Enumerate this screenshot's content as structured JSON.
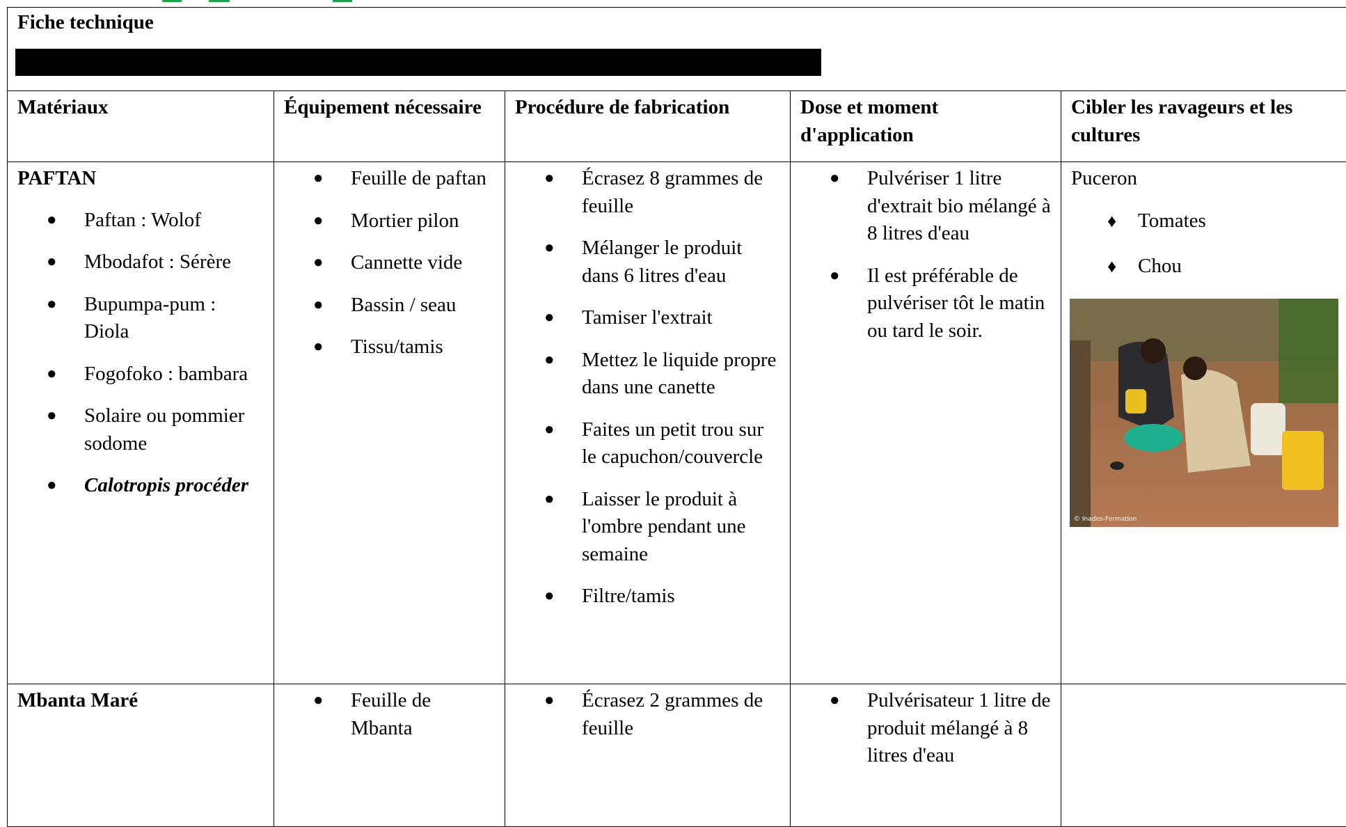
{
  "header": {
    "title": "Fiche technique"
  },
  "table": {
    "headers": [
      "Matériaux",
      "Équipement nécessaire",
      "Procédure de fabrication",
      "Dose et moment d'application",
      "Cibler les ravageurs et les cultures"
    ],
    "rows": [
      {
        "material": "PAFTAN",
        "names": [
          {
            "text": "Paftan : Wolof"
          },
          {
            "text": "Mbodafot : Sérère"
          },
          {
            "text": "Bupumpa-pum : Diola"
          },
          {
            "text": "Fogofoko : bambara"
          },
          {
            "text": "Solaire ou pommier sodome"
          },
          {
            "text": "Calotropis procéder",
            "style": "bold-italic"
          }
        ],
        "equipment": [
          "Feuille de paftan",
          "Mortier pilon",
          "Cannette vide",
          "Bassin / seau",
          "Tissu/tamis"
        ],
        "procedure": [
          "Écrasez 8 grammes de feuille",
          "Mélanger le produit dans 6 litres d'eau",
          "Tamiser l'extrait",
          "Mettez le liquide propre dans une canette",
          "Faites un petit trou sur le capuchon/couvercle",
          "Laisser le produit à l'ombre pendant une semaine",
          "Filtre/tamis"
        ],
        "dose": [
          "Pulvériser 1 litre d'extrait bio mélangé à 8 litres d'eau",
          "Il est préférable de pulvériser tôt le matin ou tard le soir."
        ],
        "pest": "Puceron",
        "crops": [
          "Tomates",
          "Chou"
        ],
        "image_credit": "© Inades-Formation"
      },
      {
        "material": "Mbanta Maré",
        "equipment": [
          "Feuille de Mbanta"
        ],
        "procedure": [
          "Écrasez 2 grammes de feuille"
        ],
        "dose": [
          "Pulvérisateur 1 litre de produit mélangé à 8 litres d'eau"
        ]
      }
    ]
  }
}
